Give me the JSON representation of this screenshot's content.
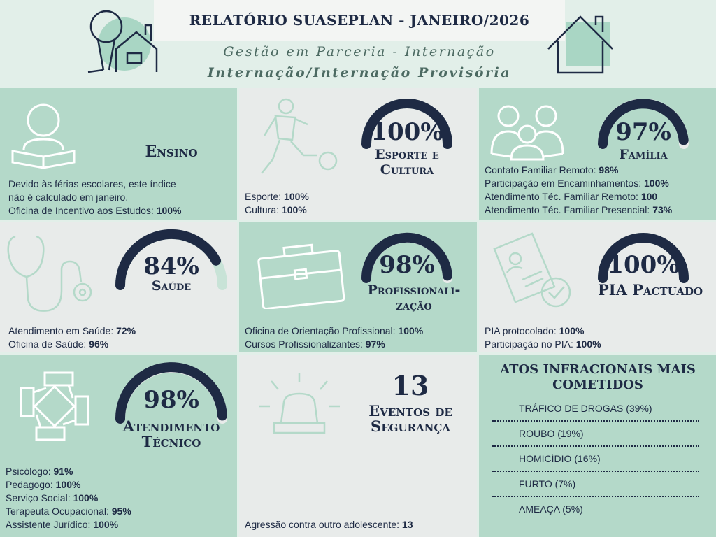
{
  "header": {
    "title": "RELATÓRIO SUASEPLAN - JANEIRO/2026",
    "subtitle1": "Gestão em Parceria - Internação",
    "subtitle2": "Internação/Internação Provisória"
  },
  "colors": {
    "navy": "#1e2a44",
    "green": "#b4d9c9",
    "gray": "#e8ebea",
    "mint": "#a9d6c4",
    "gauge_bg": "#c8e3d7"
  },
  "cards": {
    "ensino": {
      "label": "Ensino",
      "icon": "reading-person-icon",
      "lines": [
        {
          "text": "Devido às férias escolares, este índice"
        },
        {
          "text": "não é calculado em janeiro."
        },
        {
          "text": "Oficina de Incentivo aos Estudos: ",
          "value": "100%"
        }
      ]
    },
    "esporte": {
      "value": "100%",
      "label1": "Esporte e",
      "label2": "Cultura",
      "gauge": 100,
      "icon": "soccer-player-icon",
      "lines": [
        {
          "text": "Esporte: ",
          "value": "100%"
        },
        {
          "text": "Cultura: ",
          "value": "100%"
        }
      ]
    },
    "familia": {
      "value": "97%",
      "label1": "Família",
      "gauge": 97,
      "icon": "family-icon",
      "lines": [
        {
          "text": "Contato Familiar Remoto: ",
          "value": "98%"
        },
        {
          "text": "Participação em Encaminhamentos: ",
          "value": "100%"
        },
        {
          "text": "Atendimento Téc. Familiar Remoto: ",
          "value": "100"
        },
        {
          "text": "Atendimento Téc. Familiar Presencial: ",
          "value": "73%"
        }
      ]
    },
    "saude": {
      "value": "84%",
      "label1": "Saúde",
      "gauge": 84,
      "icon": "stethoscope-icon",
      "lines": [
        {
          "text": "Atendimento em Saúde: ",
          "value": "72%"
        },
        {
          "text": "Oficina de Saúde: ",
          "value": "96%"
        }
      ]
    },
    "prof": {
      "value": "98%",
      "label1": "Profissionali-",
      "label2": "zação",
      "gauge": 98,
      "icon": "briefcase-icon",
      "lines": [
        {
          "text": "Oficina de Orientação Profissional: ",
          "value": "100%"
        },
        {
          "text": "Cursos Profissionalizantes: ",
          "value": "97%"
        }
      ]
    },
    "pia": {
      "value": "100%",
      "label1": "PIA Pactuado",
      "gauge": 100,
      "icon": "document-icon",
      "lines": [
        {
          "text": "PIA protocolado: ",
          "value": "100%"
        },
        {
          "text": "Participação no PIA: ",
          "value": "100%"
        }
      ]
    },
    "atend": {
      "value": "98%",
      "label1": "Atendimento",
      "label2": "Técnico",
      "gauge": 98,
      "icon": "joined-hands-icon",
      "lines": [
        {
          "text": "Psicólogo: ",
          "value": "91%"
        },
        {
          "text": "Pedagogo: ",
          "value": "100%"
        },
        {
          "text": "Serviço Social: ",
          "value": "100%"
        },
        {
          "text": "Terapeuta Ocupacional: ",
          "value": "95%"
        },
        {
          "text": "Assistente Jurídico: ",
          "value": "100%"
        }
      ]
    },
    "seguranca": {
      "value": "13",
      "label1": "Eventos de",
      "label2": "Segurança",
      "icon": "alarm-light-icon",
      "lines": [
        {
          "text": "Agressão contra outro adolescente: ",
          "value": "13"
        }
      ]
    },
    "atos": {
      "title1": "Atos infracionais mais",
      "title2": "cometidos",
      "items": [
        "TRÁFICO DE DROGAS (39%)",
        "ROUBO (19%)",
        "HOMICÍDIO (16%)",
        "FURTO (7%)",
        "AMEAÇA (5%)"
      ]
    }
  }
}
